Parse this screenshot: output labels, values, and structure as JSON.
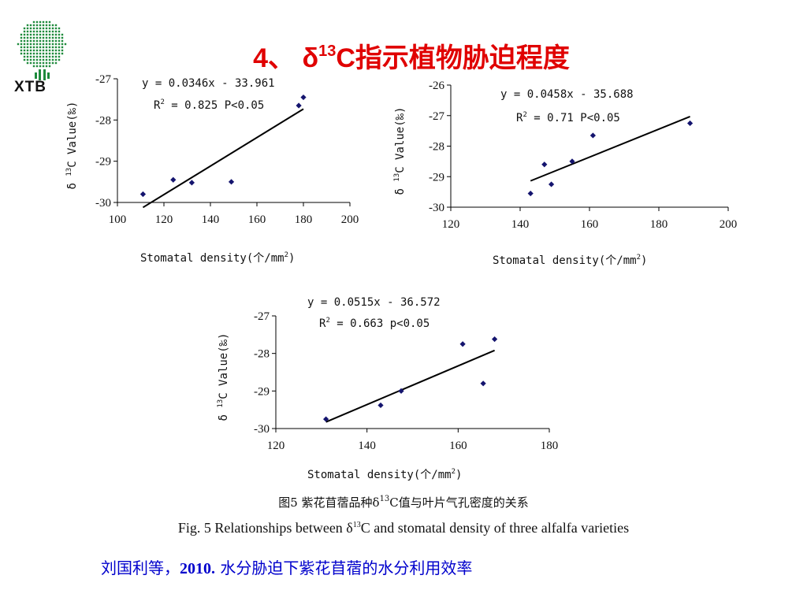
{
  "logo": {
    "text": "XTB"
  },
  "title": {
    "prefix": "4、 δ",
    "sup": "13",
    "suffix": "C指示植物胁迫程度"
  },
  "chart_data": [
    {
      "type": "scatter",
      "fit": {
        "slope": 0.0346,
        "intercept": -33.961
      },
      "equation": "y = 0.0346x - 33.961",
      "r2_prefix": "R",
      "r2_sup": "2",
      "r2_suffix": " = 0.825 P<0.05",
      "xlabel_prefix": "Stomatal density(个/mm",
      "xlabel_sup": "2",
      "xlabel_suffix": ")",
      "ylabel_prefix": "δ ",
      "ylabel_sup": "13",
      "ylabel_suffix": "C Value(‰)",
      "xlim": [
        100,
        200
      ],
      "ylim": [
        -30,
        -27
      ],
      "xticks": [
        100,
        120,
        140,
        160,
        180,
        200
      ],
      "yticks": [
        -27,
        -28,
        -29,
        -30
      ],
      "points": [
        {
          "x": 111,
          "y": -29.8
        },
        {
          "x": 124,
          "y": -29.45
        },
        {
          "x": 132,
          "y": -29.52
        },
        {
          "x": 149,
          "y": -29.5
        },
        {
          "x": 178,
          "y": -27.65
        },
        {
          "x": 180,
          "y": -27.45
        }
      ],
      "fit_range": [
        111,
        180
      ]
    },
    {
      "type": "scatter",
      "fit": {
        "slope": 0.0458,
        "intercept": -35.688
      },
      "equation": "y = 0.0458x - 35.688",
      "r2_prefix": "R",
      "r2_sup": "2",
      "r2_suffix": " = 0.71 P<0.05",
      "xlabel_prefix": "Stomatal density(个/mm",
      "xlabel_sup": "2",
      "xlabel_suffix": ")",
      "ylabel_prefix": "δ ",
      "ylabel_sup": "13",
      "ylabel_suffix": "C Value(‰)",
      "xlim": [
        120,
        200
      ],
      "ylim": [
        -30,
        -26
      ],
      "xticks": [
        120,
        140,
        160,
        180,
        200
      ],
      "yticks": [
        -26,
        -27,
        -28,
        -29,
        -30
      ],
      "points": [
        {
          "x": 143,
          "y": -29.55
        },
        {
          "x": 147,
          "y": -28.6
        },
        {
          "x": 149,
          "y": -29.25
        },
        {
          "x": 155,
          "y": -28.5
        },
        {
          "x": 161,
          "y": -27.65
        },
        {
          "x": 189,
          "y": -27.25
        }
      ],
      "fit_range": [
        143,
        189
      ]
    },
    {
      "type": "scatter",
      "fit": {
        "slope": 0.0515,
        "intercept": -36.572
      },
      "equation": "y = 0.0515x - 36.572",
      "r2_prefix": "R",
      "r2_sup": "2",
      "r2_suffix": " = 0.663 p<0.05",
      "xlabel_prefix": "Stomatal density(个/mm",
      "xlabel_sup": "2",
      "xlabel_suffix": ")",
      "ylabel_prefix": "δ ",
      "ylabel_sup": "13",
      "ylabel_suffix": "C Value(‰)",
      "xlim": [
        120,
        180
      ],
      "ylim": [
        -30,
        -27
      ],
      "xticks": [
        120,
        140,
        160,
        180
      ],
      "yticks": [
        -27,
        -28,
        -29,
        -30
      ],
      "points": [
        {
          "x": 131,
          "y": -29.75
        },
        {
          "x": 143,
          "y": -29.38
        },
        {
          "x": 147.5,
          "y": -29.0
        },
        {
          "x": 161,
          "y": -27.75
        },
        {
          "x": 165.5,
          "y": -28.8
        },
        {
          "x": 168,
          "y": -27.62
        }
      ],
      "fit_range": [
        131,
        168
      ]
    }
  ],
  "caption": {
    "cn_prefix": "图5 紫花苜蓿品种δ",
    "cn_sup": "13",
    "cn_suffix": "C值与叶片气孔密度的关系",
    "en_prefix": "Fig. 5 Relationships between δ",
    "en_sup": "13",
    "en_suffix": "C and stomatal density of three alfalfa varieties"
  },
  "reference": {
    "authors": "刘国利等，",
    "year": "2010.",
    "title": " 水分胁迫下紫花苜蓿的水分利用效率"
  },
  "colors": {
    "title": "#e00000",
    "reference": "#0000cc",
    "marker": "#14146e",
    "logo": "#1e8a3c"
  }
}
